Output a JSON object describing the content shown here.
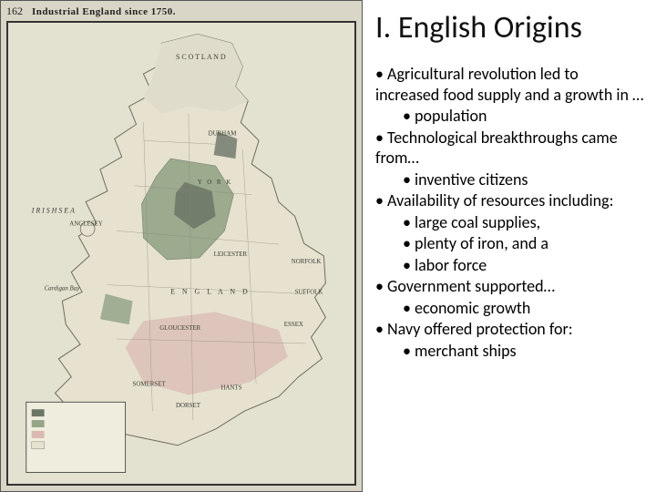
{
  "map": {
    "page_number": "162",
    "title": "Industrial England since 1750.",
    "labels": {
      "scotland": "S C O T L A N D",
      "irish_sea": "I R I S H   S E A",
      "england": "E N G L A N D",
      "anglesey": "ANGLESEY",
      "durham": "DURHAM",
      "york": "Y O R K",
      "norfolk": "NORFOLK",
      "suffolk": "SUFFOLK",
      "essex": "ESSEX",
      "cardigan": "Cardigan Bay",
      "dorset": "DORSET",
      "somerset": "SOMERSET",
      "hants": "HANTS",
      "leicester": "LEICESTER",
      "gloucester": "GLOUCESTER"
    },
    "colors": {
      "sea": "#e3e1d0",
      "land_base": "#e6e2cf",
      "coal_dark": "#6b7666",
      "industrial_green": "#94a588",
      "south_pink": "#d9b9b2",
      "border": "#333333",
      "county_line": "#8a8876",
      "coast_line": "#6d6b5c"
    }
  },
  "slide": {
    "heading": "I. English Origins",
    "items": [
      {
        "level": 1,
        "text": "Agricultural revolution led to increased food supply and a growth in …"
      },
      {
        "level": 2,
        "text": "population"
      },
      {
        "level": 1,
        "text": "Technological breakthroughs came from…"
      },
      {
        "level": 2,
        "text": "inventive citizens"
      },
      {
        "level": 1,
        "text": "Availability of resources including:"
      },
      {
        "level": 2,
        "text": "large coal supplies,"
      },
      {
        "level": 2,
        "text": "plenty of iron, and a"
      },
      {
        "level": 2,
        "text": "labor force"
      },
      {
        "level": 1,
        "text": "Government supported…"
      },
      {
        "level": 2,
        "text": "economic growth"
      },
      {
        "level": 1,
        "text": "Navy offered protection for:"
      },
      {
        "level": 2,
        "text": "merchant ships"
      }
    ],
    "text_color": "#000000",
    "background": "#ffffff",
    "heading_fontsize": 34,
    "body_fontsize": 18
  }
}
